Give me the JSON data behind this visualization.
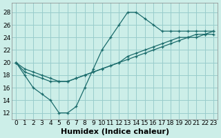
{
  "xlabel": "Humidex (Indice chaleur)",
  "bg_color": "#cceee8",
  "grid_color": "#99cccc",
  "line_color": "#1a6b6b",
  "xlim": [
    -0.5,
    23.5
  ],
  "ylim": [
    11,
    29.5
  ],
  "xticks": [
    0,
    1,
    2,
    3,
    4,
    5,
    6,
    7,
    8,
    9,
    10,
    11,
    12,
    13,
    14,
    15,
    16,
    17,
    18,
    19,
    20,
    21,
    22,
    23
  ],
  "yticks": [
    12,
    14,
    16,
    18,
    20,
    22,
    24,
    26,
    28
  ],
  "line_peaked_x": [
    0,
    1,
    2,
    3,
    4,
    5,
    6,
    7,
    8,
    9,
    10,
    11,
    12,
    13,
    14,
    15,
    16,
    17,
    18,
    19,
    20,
    21,
    22,
    23
  ],
  "line_peaked_y": [
    20,
    18,
    16,
    15,
    14,
    12,
    12,
    13,
    16,
    19,
    22,
    24,
    26,
    28,
    28,
    27,
    26,
    25,
    25,
    25,
    25,
    25,
    25,
    25
  ],
  "line_diag1_x": [
    0,
    1,
    2,
    3,
    4,
    5,
    6,
    7,
    8,
    9,
    10,
    11,
    12,
    13,
    14,
    15,
    16,
    17,
    18,
    19,
    20,
    21,
    22,
    23
  ],
  "line_diag1_y": [
    20,
    18.5,
    18,
    17.5,
    17,
    17,
    17,
    17.5,
    18,
    18.5,
    19,
    19.5,
    20,
    20.5,
    21,
    21.5,
    22,
    22.5,
    23,
    23.5,
    24,
    24,
    24.5,
    25
  ],
  "line_diag2_x": [
    0,
    1,
    2,
    3,
    4,
    5,
    6,
    7,
    8,
    9,
    10,
    11,
    12,
    13,
    14,
    15,
    16,
    17,
    18,
    19,
    20,
    21,
    22,
    23
  ],
  "line_diag2_y": [
    20,
    19,
    18.5,
    18,
    17.5,
    17,
    17,
    17.5,
    18,
    18.5,
    19,
    19.5,
    20,
    21,
    21.5,
    22,
    22.5,
    23,
    23.5,
    24,
    24,
    24.5,
    24.5,
    24.5
  ],
  "fontsize_xlabel": 8,
  "fontsize_tick": 6.5
}
